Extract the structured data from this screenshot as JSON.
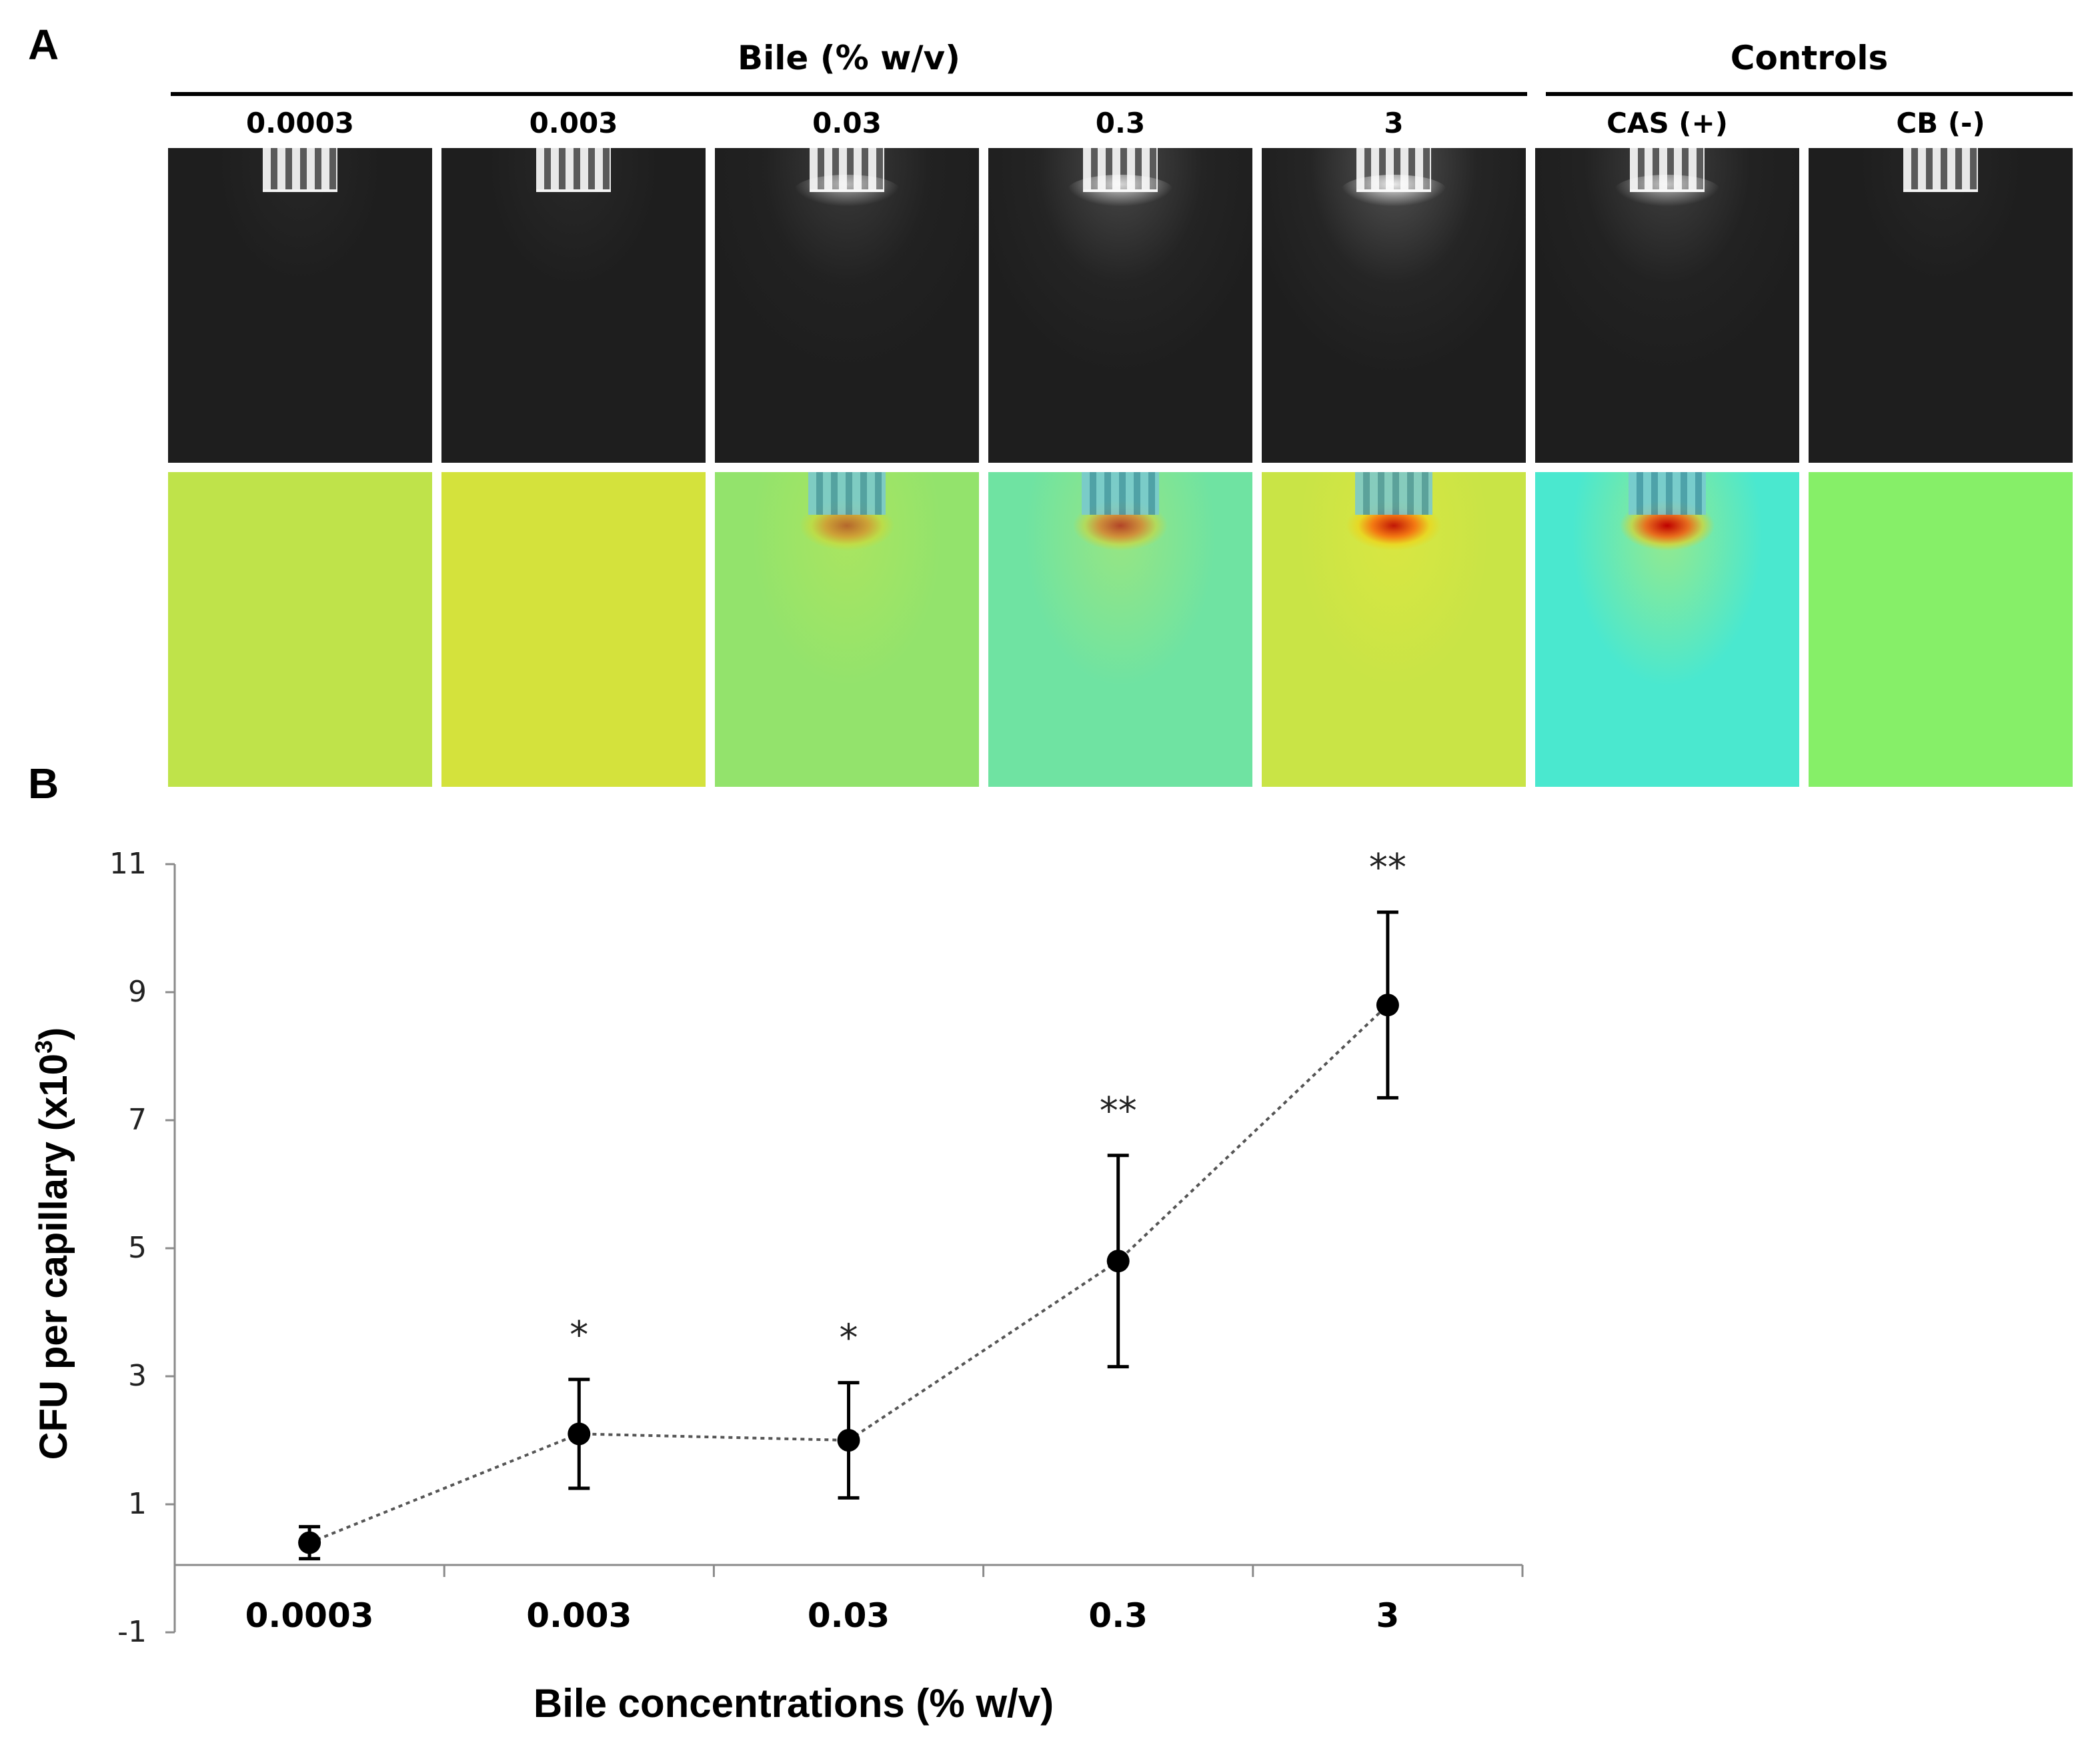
{
  "panel_a": {
    "letter": "A",
    "groups": [
      {
        "title": "Bile (% w/v)"
      },
      {
        "title": "Controls"
      }
    ],
    "columns": [
      {
        "label": "0.0003",
        "gray_glow": 0.0,
        "heat_bg": "#bfe34a",
        "heat_hot": 0.0
      },
      {
        "label": "0.003",
        "gray_glow": 0.05,
        "heat_bg": "#d4e23c",
        "heat_hot": 0.0
      },
      {
        "label": "0.03",
        "gray_glow": 0.45,
        "heat_bg": "#93e36c",
        "heat_hot": 0.55
      },
      {
        "label": "0.3",
        "gray_glow": 0.75,
        "heat_bg": "#6fe3a2",
        "heat_hot": 0.7
      },
      {
        "label": "3",
        "gray_glow": 0.95,
        "heat_bg": "#c9e446",
        "heat_hot": 0.9
      },
      {
        "label": "CAS (+)",
        "gray_glow": 0.55,
        "heat_bg": "#4ae8cf",
        "heat_hot": 1.0
      },
      {
        "label": "CB (-)",
        "gray_glow": 0.0,
        "heat_bg": "#86ef68",
        "heat_hot": 0.0
      }
    ]
  },
  "panel_b": {
    "letter": "B",
    "chart_data": {
      "type": "line",
      "categories": [
        "0.0003",
        "0.003",
        "0.03",
        "0.3",
        "3"
      ],
      "series": [
        {
          "values": [
            0.4,
            2.1,
            2.0,
            4.8,
            8.8
          ],
          "error": [
            0.25,
            0.85,
            0.9,
            1.65,
            1.45
          ],
          "significance": [
            "",
            "*",
            "*",
            "**",
            "**"
          ]
        }
      ],
      "xlabel": "Bile concentrations (% w/v)",
      "ylabel": "CFU per capillary (x10",
      "ylabel_sup": "3",
      "ylabel_end": ")",
      "ylim": [
        -1,
        11
      ],
      "yticks": [
        "-1",
        "1",
        "3",
        "5",
        "7",
        "9",
        "11"
      ],
      "grid": false,
      "line_style": "dotted",
      "colors": {
        "line": "#555555",
        "marker": "#000000"
      }
    }
  }
}
